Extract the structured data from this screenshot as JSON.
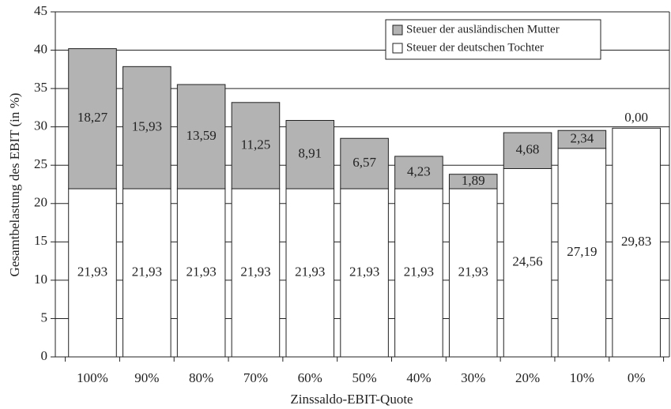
{
  "chart_data": {
    "type": "stacked_bar",
    "categories": [
      "100%",
      "90%",
      "80%",
      "70%",
      "60%",
      "50%",
      "40%",
      "30%",
      "20%",
      "10%",
      "0%"
    ],
    "series": [
      {
        "name": "Steuer der deutschen Tochter",
        "color": "#ffffff",
        "values": [
          21.93,
          21.93,
          21.93,
          21.93,
          21.93,
          21.93,
          21.93,
          21.93,
          24.56,
          27.19,
          29.83
        ],
        "value_labels": [
          "21,93",
          "21,93",
          "21,93",
          "21,93",
          "21,93",
          "21,93",
          "21,93",
          "21,93",
          "24,56",
          "27,19",
          "29,83"
        ]
      },
      {
        "name": "Steuer der ausländischen Mutter",
        "color": "#b3b3b3",
        "values": [
          18.27,
          15.93,
          13.59,
          11.25,
          8.91,
          6.57,
          4.23,
          1.89,
          4.68,
          2.34,
          0.0
        ],
        "value_labels": [
          "18,27",
          "15,93",
          "13,59",
          "11,25",
          "8,91",
          "6,57",
          "4,23",
          "1,89",
          "4,68",
          "2,34",
          "0,00"
        ]
      }
    ],
    "xlabel": "Zinssaldo-EBIT-Quote",
    "ylabel": "Gesamtbelastung des EBIT  (in %)",
    "ylim": [
      0,
      45
    ],
    "yticks": [
      0,
      5,
      10,
      15,
      20,
      25,
      30,
      35,
      40,
      45
    ],
    "grid": true,
    "legend": "upper right"
  }
}
